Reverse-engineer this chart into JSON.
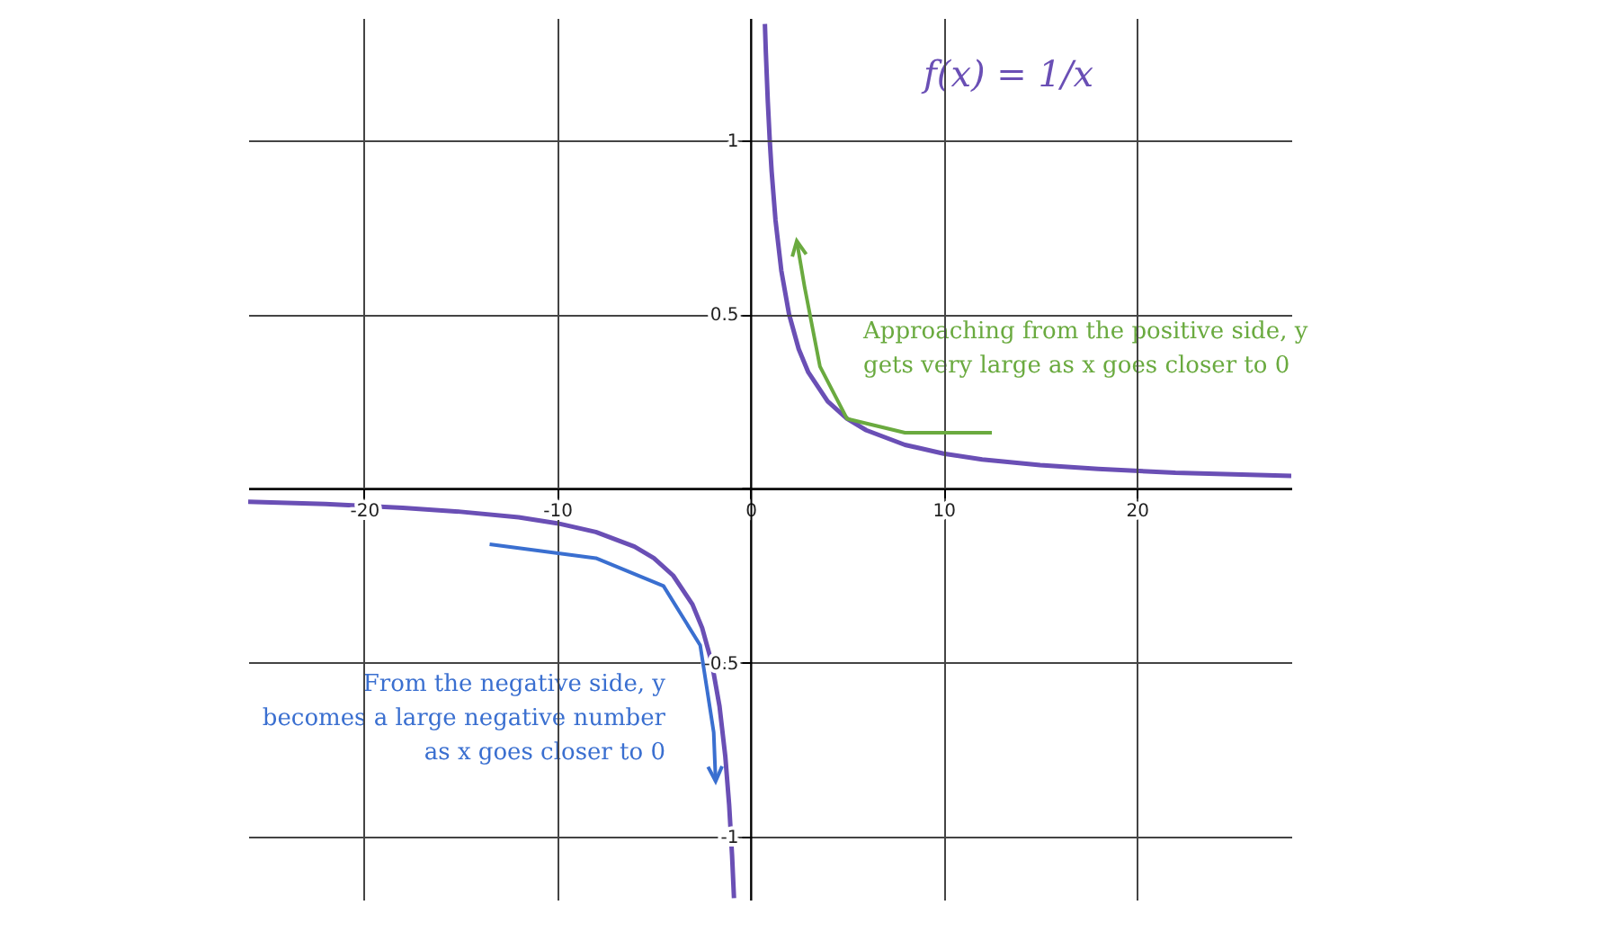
{
  "chart_data": {
    "type": "line",
    "title": "f(x) = 1/x",
    "annotations": [
      "Approaching from the positive side, y\ngets very large as x goes closer to 0",
      "From the negative side, y\nbecomes a large negative number\nas x goes closer to 0"
    ],
    "x": [
      -26,
      -22,
      -18,
      -15,
      -12,
      -10,
      -8,
      -6,
      -5,
      -4,
      -3,
      -2.5,
      -2,
      -1.6,
      -1.3,
      -1.1,
      -0.95,
      -0.85,
      0,
      0.75,
      0.8,
      0.9,
      1,
      1.1,
      1.3,
      1.6,
      2,
      2.5,
      3,
      4,
      5,
      6,
      8,
      10,
      12,
      15,
      18,
      22,
      28
    ],
    "series": [
      {
        "color": "#6a4fb5",
        "values": [
          -0.038,
          -0.045,
          -0.056,
          -0.067,
          -0.083,
          -0.1,
          -0.125,
          -0.167,
          -0.2,
          -0.25,
          -0.333,
          -0.4,
          -0.5,
          -0.625,
          -0.769,
          -0.909,
          -1.053,
          -1.176,
          null,
          1.333,
          1.25,
          1.111,
          1,
          0.909,
          0.769,
          0.625,
          0.5,
          0.4,
          0.333,
          0.25,
          0.2,
          0.167,
          0.125,
          0.1,
          0.083,
          0.067,
          0.056,
          0.045,
          0.036
        ]
      }
    ],
    "xlim": [
      -26,
      28
    ],
    "ylim": [
      -1.18,
      1.35
    ],
    "xticks": [
      -20,
      -10,
      0,
      10,
      20
    ],
    "yticks": [
      -1,
      -0.5,
      {
        "value": 0,
        "label": null
      },
      0.5,
      1
    ],
    "grid": true
  }
}
